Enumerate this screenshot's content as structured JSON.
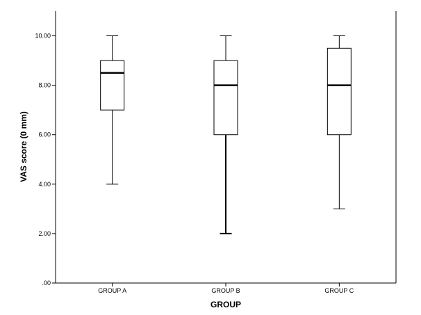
{
  "chart_data": {
    "type": "boxplot",
    "xlabel": "GROUP",
    "ylabel": "VAS score (0 mm)",
    "ylim": [
      0,
      11
    ],
    "yticks": [
      ".00",
      "2.00",
      "4.00",
      "6.00",
      "8.00",
      "10.00"
    ],
    "ytick_values": [
      0,
      2,
      4,
      6,
      8,
      10
    ],
    "categories": [
      "GROUP A",
      "GROUP B",
      "GROUP C"
    ],
    "boxes": [
      {
        "category": "GROUP A",
        "min": 4,
        "q1": 7,
        "median": 8.5,
        "q3": 9,
        "max": 10
      },
      {
        "category": "GROUP B",
        "min": 2,
        "q1": 6,
        "median": 8,
        "q3": 9,
        "max": 10
      },
      {
        "category": "GROUP C",
        "min": 3,
        "q1": 6,
        "median": 8,
        "q3": 9.5,
        "max": 10
      }
    ],
    "grid": false,
    "colors": {
      "box_fill": "#ffffff",
      "stroke": "#000000",
      "background": "#ffffff"
    }
  }
}
